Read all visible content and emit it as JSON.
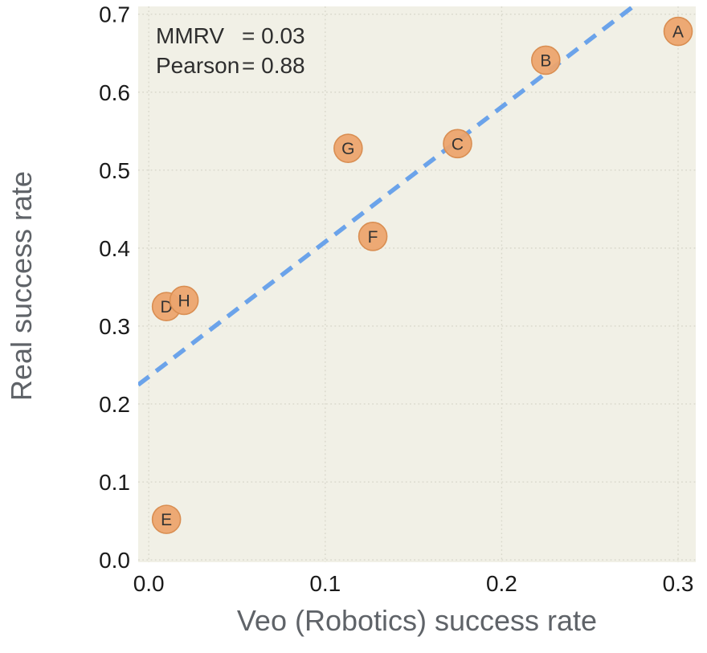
{
  "chart_data": {
    "type": "scatter",
    "title": "",
    "xlabel": "Veo (Robotics) success rate",
    "ylabel": "Real success rate",
    "xlim": [
      -0.006,
      0.31
    ],
    "ylim": [
      -0.003,
      0.71
    ],
    "x_ticks": [
      0.0,
      0.1,
      0.2,
      0.3
    ],
    "y_ticks": [
      0.0,
      0.1,
      0.2,
      0.3,
      0.4,
      0.5,
      0.6,
      0.7
    ],
    "grid": true,
    "legend": "none",
    "points": [
      {
        "label": "A",
        "x": 0.3,
        "y": 0.678
      },
      {
        "label": "B",
        "x": 0.225,
        "y": 0.641
      },
      {
        "label": "C",
        "x": 0.175,
        "y": 0.534
      },
      {
        "label": "G",
        "x": 0.113,
        "y": 0.528
      },
      {
        "label": "F",
        "x": 0.127,
        "y": 0.415
      },
      {
        "label": "D",
        "x": 0.01,
        "y": 0.325
      },
      {
        "label": "H",
        "x": 0.02,
        "y": 0.333
      },
      {
        "label": "E",
        "x": 0.01,
        "y": 0.052
      }
    ],
    "trend_line": {
      "slope": 1.73,
      "intercept": 0.235,
      "style": "dashed"
    },
    "annotation": {
      "lines": [
        {
          "label": "MMRV",
          "value": "= 0.03"
        },
        {
          "label": "Pearson",
          "value": "= 0.88"
        }
      ]
    },
    "colors": {
      "point_fill": "#eca46e",
      "point_stroke": "#d98e52",
      "trend": "#6ba3ea",
      "plot_bg": "#f1f0e6",
      "grid": "#d9d8cc",
      "tick_label": "#1a1a1a",
      "axis_title": "#5f6368",
      "annotation_text": "#2e2e2e",
      "point_label": "#333333"
    }
  }
}
